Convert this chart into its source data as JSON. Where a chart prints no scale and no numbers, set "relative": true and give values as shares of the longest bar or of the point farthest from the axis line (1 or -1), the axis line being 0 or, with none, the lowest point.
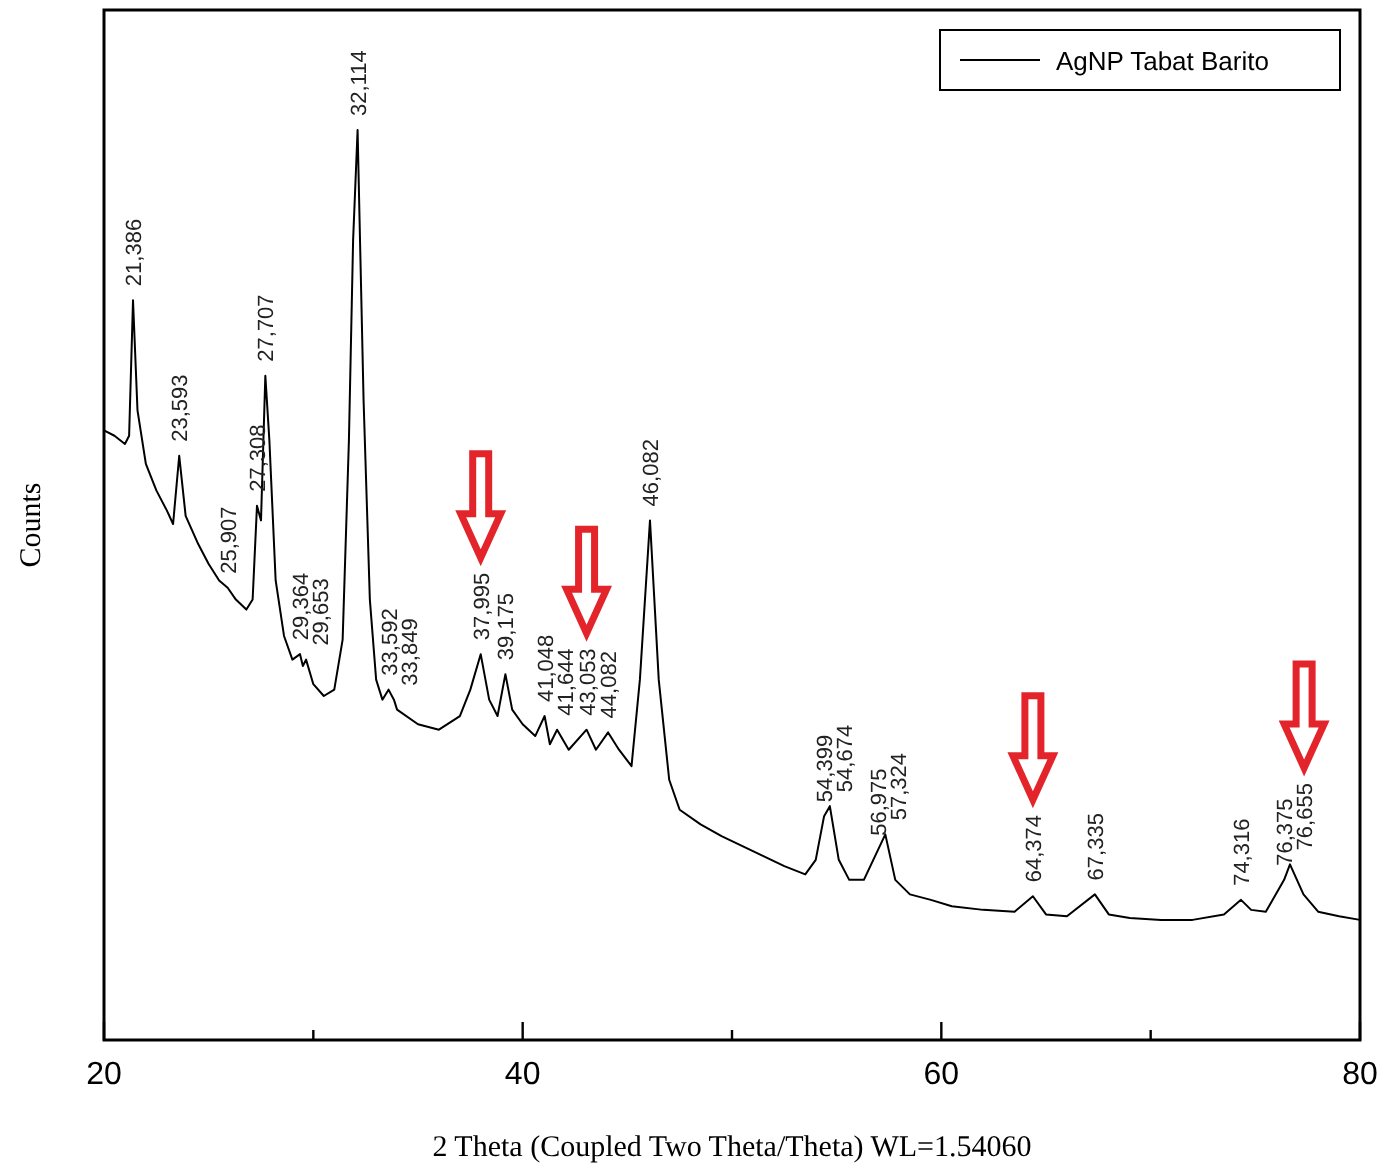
{
  "chart_data": {
    "type": "line",
    "relative": true,
    "xlabel": "2 Theta (Coupled Two Theta/Theta) WL=1.54060",
    "ylabel": "Counts",
    "xlim": [
      20,
      80
    ],
    "xticks": [
      20,
      {
        "value": 30,
        "label": null
      },
      40,
      {
        "value": 50,
        "label": null
      },
      60,
      {
        "value": 70,
        "label": null
      },
      80
    ],
    "legend": "top right",
    "grid": false,
    "series": [
      {
        "name": "AgNP Tabat Barito",
        "color": "#000000",
        "x": [
          20.0,
          20.5,
          21.0,
          21.2,
          21.386,
          21.6,
          22.0,
          22.5,
          23.0,
          23.3,
          23.593,
          23.9,
          24.5,
          25.0,
          25.5,
          25.907,
          26.3,
          26.8,
          27.1,
          27.308,
          27.5,
          27.707,
          27.9,
          28.2,
          28.6,
          29.0,
          29.364,
          29.5,
          29.653,
          30.0,
          30.5,
          31.0,
          31.4,
          31.7,
          31.9,
          32.114,
          32.4,
          32.7,
          33.0,
          33.3,
          33.592,
          33.849,
          34.0,
          35,
          36,
          37,
          37.5,
          37.995,
          38.4,
          38.8,
          39.175,
          39.5,
          40,
          40.6,
          41.048,
          41.3,
          41.644,
          42.2,
          43.053,
          43.5,
          44.082,
          44.6,
          45.2,
          45.6,
          46.082,
          46.5,
          47.0,
          47.5,
          48.5,
          49.5,
          50.5,
          51.5,
          52.5,
          53.5,
          54.0,
          54.399,
          54.674,
          55.1,
          55.6,
          56.3,
          56.975,
          57.324,
          57.8,
          58.5,
          59.5,
          60.5,
          62,
          63.5,
          64.374,
          65,
          66,
          67.335,
          68,
          69,
          70.5,
          72,
          73.5,
          74.316,
          74.8,
          75.5,
          76.375,
          76.655,
          77.3,
          78,
          79,
          80
        ],
        "values": [
          0.67,
          0.664,
          0.655,
          0.664,
          0.813,
          0.692,
          0.633,
          0.604,
          0.582,
          0.567,
          0.642,
          0.576,
          0.545,
          0.523,
          0.505,
          0.497,
          0.484,
          0.473,
          0.484,
          0.587,
          0.571,
          0.73,
          0.659,
          0.505,
          0.444,
          0.418,
          0.424,
          0.411,
          0.418,
          0.391,
          0.378,
          0.385,
          0.44,
          0.659,
          0.879,
          1,
          0.703,
          0.484,
          0.396,
          0.374,
          0.385,
          0.374,
          0.363,
          0.347,
          0.341,
          0.356,
          0.385,
          0.424,
          0.374,
          0.356,
          0.402,
          0.363,
          0.347,
          0.334,
          0.356,
          0.325,
          0.341,
          0.319,
          0.341,
          0.319,
          0.338,
          0.319,
          0.301,
          0.396,
          0.571,
          0.396,
          0.286,
          0.253,
          0.237,
          0.224,
          0.213,
          0.202,
          0.191,
          0.182,
          0.198,
          0.246,
          0.257,
          0.198,
          0.176,
          0.176,
          0.209,
          0.226,
          0.176,
          0.16,
          0.154,
          0.147,
          0.143,
          0.141,
          0.158,
          0.138,
          0.136,
          0.16,
          0.138,
          0.134,
          0.132,
          0.132,
          0.138,
          0.154,
          0.143,
          0.141,
          0.176,
          0.193,
          0.16,
          0.141,
          0.136,
          0.132
        ]
      }
    ],
    "annotations": [
      {
        "text": "21,386",
        "x": 21.386,
        "y": 0.813
      },
      {
        "text": "23,593",
        "x": 23.593,
        "y": 0.642
      },
      {
        "text": "25,907",
        "x": 25.907,
        "y": 0.497
      },
      {
        "text": "27,308",
        "x": 27.308,
        "y": 0.587
      },
      {
        "text": "27,707",
        "x": 27.707,
        "y": 0.73
      },
      {
        "text": "29,364",
        "x": 29.364,
        "y": 0.424
      },
      {
        "text": "29,653",
        "x": 29.653,
        "y": 0.418
      },
      {
        "text": "32,114",
        "x": 32.114,
        "y": 1
      },
      {
        "text": "33,592",
        "x": 33.592,
        "y": 0.385
      },
      {
        "text": "33,849",
        "x": 33.849,
        "y": 0.374
      },
      {
        "text": "37,995",
        "x": 37.995,
        "y": 0.424
      },
      {
        "text": "39,175",
        "x": 39.175,
        "y": 0.402
      },
      {
        "text": "41,048",
        "x": 41.048,
        "y": 0.356
      },
      {
        "text": "41,644",
        "x": 41.644,
        "y": 0.341
      },
      {
        "text": "43,053",
        "x": 43.053,
        "y": 0.341
      },
      {
        "text": "44,082",
        "x": 44.082,
        "y": 0.338
      },
      {
        "text": "46,082",
        "x": 46.082,
        "y": 0.571
      },
      {
        "text": "54,399",
        "x": 54.399,
        "y": 0.246
      },
      {
        "text": "54,674",
        "x": 54.674,
        "y": 0.257
      },
      {
        "text": "56,975",
        "x": 56.975,
        "y": 0.209
      },
      {
        "text": "57,324",
        "x": 57.324,
        "y": 0.226
      },
      {
        "text": "64,374",
        "x": 64.374,
        "y": 0.158
      },
      {
        "text": "67,335",
        "x": 67.335,
        "y": 0.16
      },
      {
        "text": "74,316",
        "x": 74.316,
        "y": 0.154
      },
      {
        "text": "76,375",
        "x": 76.375,
        "y": 0.176
      },
      {
        "text": "76,655",
        "x": 76.655,
        "y": 0.193
      }
    ]
  }
}
